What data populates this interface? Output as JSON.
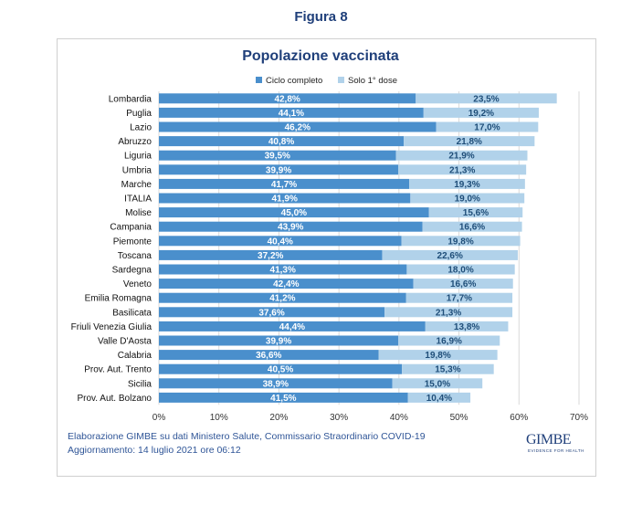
{
  "figure_title": "Figura 8",
  "footer": {
    "source": "Elaborazione GIMBE su dati Ministero Salute, Commissario Straordinario COVID-19",
    "updated": "Aggiornamento: 14 luglio 2021 ore 06:12"
  },
  "logo": {
    "name": "GIMBE",
    "tagline": "EVIDENCE FOR HEALTH"
  },
  "colors": {
    "complete": "#4a8fcc",
    "first": "#b1d2ea",
    "title": "#1f3f7a",
    "first_label": "#1f4e79"
  },
  "chart_data": {
    "type": "bar",
    "orientation": "horizontal",
    "stacked": true,
    "title": "Popolazione vaccinata",
    "categories": [
      "Lombardia",
      "Puglia",
      "Lazio",
      "Abruzzo",
      "Liguria",
      "Umbria",
      "Marche",
      "ITALIA",
      "Molise",
      "Campania",
      "Piemonte",
      "Toscana",
      "Sardegna",
      "Veneto",
      "Emilia Romagna",
      "Basilicata",
      "Friuli Venezia Giulia",
      "Valle D'Aosta",
      "Calabria",
      "Prov. Aut. Trento",
      "Sicilia",
      "Prov. Aut. Bolzano"
    ],
    "series": [
      {
        "name": "Ciclo completo",
        "values": [
          42.8,
          44.1,
          46.2,
          40.8,
          39.5,
          39.9,
          41.7,
          41.9,
          45.0,
          43.9,
          40.4,
          37.2,
          41.3,
          42.4,
          41.2,
          37.6,
          44.4,
          39.9,
          36.6,
          40.5,
          38.9,
          41.5
        ],
        "labels": [
          "42,8%",
          "44,1%",
          "46,2%",
          "40,8%",
          "39,5%",
          "39,9%",
          "41,7%",
          "41,9%",
          "45,0%",
          "43,9%",
          "40,4%",
          "37,2%",
          "41,3%",
          "42,4%",
          "41,2%",
          "37,6%",
          "44,4%",
          "39,9%",
          "36,6%",
          "40,5%",
          "38,9%",
          "41,5%"
        ]
      },
      {
        "name": "Solo 1° dose",
        "values": [
          23.5,
          19.2,
          17.0,
          21.8,
          21.9,
          21.3,
          19.3,
          19.0,
          15.6,
          16.6,
          19.8,
          22.6,
          18.0,
          16.6,
          17.7,
          21.3,
          13.8,
          16.9,
          19.8,
          15.3,
          15.0,
          10.4
        ],
        "labels": [
          "23,5%",
          "19,2%",
          "17,0%",
          "21,8%",
          "21,9%",
          "21,3%",
          "19,3%",
          "19,0%",
          "15,6%",
          "16,6%",
          "19,8%",
          "22,6%",
          "18,0%",
          "16,6%",
          "17,7%",
          "21,3%",
          "13,8%",
          "16,9%",
          "19,8%",
          "15,3%",
          "15,0%",
          "10,4%"
        ]
      }
    ],
    "xlim": [
      0,
      70
    ],
    "xticks": [
      "0%",
      "10%",
      "20%",
      "30%",
      "40%",
      "50%",
      "60%",
      "70%"
    ],
    "grid": true,
    "legend": "top-center"
  }
}
